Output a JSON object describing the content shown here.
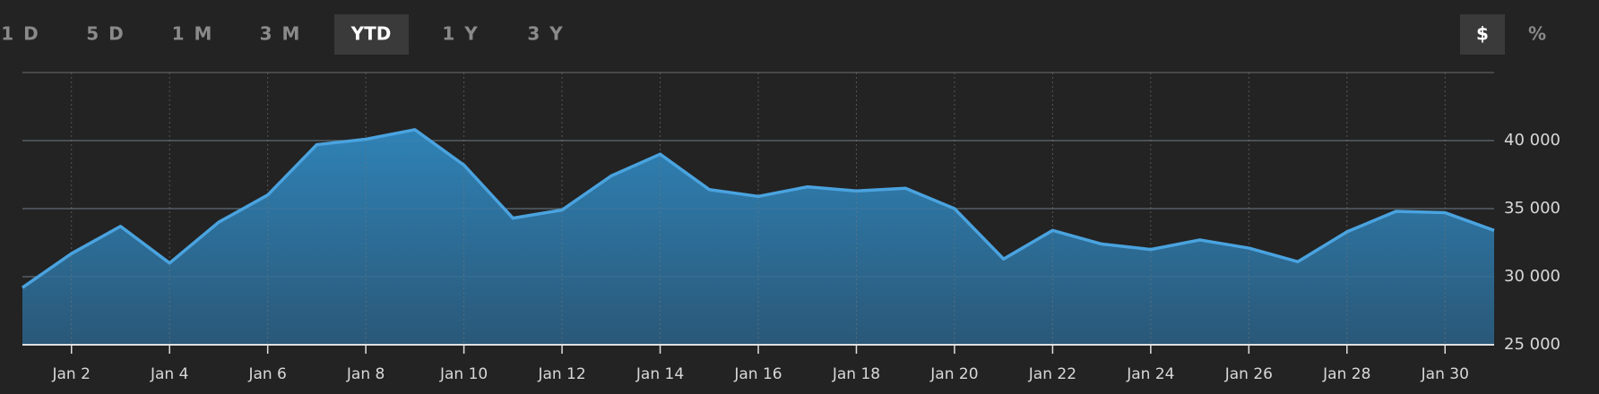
{
  "range_buttons": [
    "1 D",
    "5 D",
    "1 M",
    "3 M",
    "YTD",
    "1 Y",
    "3 Y"
  ],
  "active_range": 4,
  "unit_buttons": [
    "$",
    "%"
  ],
  "active_unit": 0,
  "chart_data": {
    "type": "area",
    "categories": [
      null,
      "Jan 2",
      null,
      "Jan 4",
      null,
      "Jan 6",
      null,
      "Jan 8",
      null,
      "Jan 10",
      null,
      "Jan 12",
      null,
      "Jan 14",
      null,
      "Jan 16",
      null,
      "Jan 18",
      null,
      "Jan 20",
      null,
      "Jan 22",
      null,
      "Jan 24",
      null,
      "Jan 26",
      null,
      "Jan 28",
      null,
      "Jan 30",
      null
    ],
    "values": [
      29200,
      31700,
      33700,
      31000,
      34000,
      36000,
      39700,
      40100,
      40800,
      38200,
      34300,
      34900,
      37400,
      39000,
      36400,
      35900,
      36600,
      36300,
      36500,
      35000,
      31300,
      33400,
      32400,
      32000,
      32700,
      32100,
      31100,
      33300,
      34800,
      34700,
      33400
    ],
    "color": "#4aa3df",
    "ylim": [
      25000,
      45000
    ],
    "yticks": [
      {
        "value": 25000,
        "label": "25 000"
      },
      {
        "value": 30000,
        "label": "30 000"
      },
      {
        "value": 35000,
        "label": "35 000"
      },
      {
        "value": 40000,
        "label": "40 000"
      }
    ],
    "grid": true
  }
}
